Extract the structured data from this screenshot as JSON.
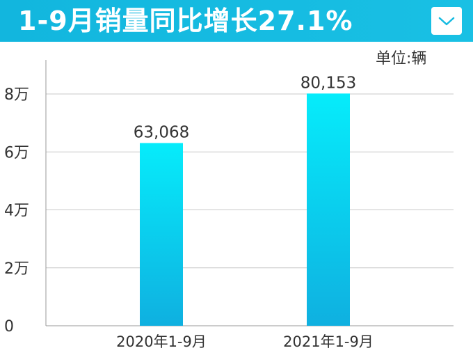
{
  "header": {
    "title": "1-9月销量同比增长27.1%",
    "dropdown_icon": "chevron-down-icon",
    "color": "#16bbe1"
  },
  "unit_label": "单位:辆",
  "chart_data": {
    "type": "bar",
    "categories": [
      "2020年1-9月",
      "2021年1-9月"
    ],
    "values": [
      63068,
      80153
    ],
    "data_labels": [
      "63,068",
      "80,153"
    ],
    "title": "1-9月销量同比增长27.1%",
    "xlabel": "",
    "ylabel": "",
    "ylim": [
      0,
      92000
    ],
    "yticks": [
      0,
      20000,
      40000,
      60000,
      80000
    ],
    "ytick_labels": [
      "0",
      "2万",
      "4万",
      "6万",
      "8万"
    ],
    "grid": true,
    "bar_colors": {
      "top": "#06ecfb",
      "bottom": "#0fb0e0"
    }
  }
}
